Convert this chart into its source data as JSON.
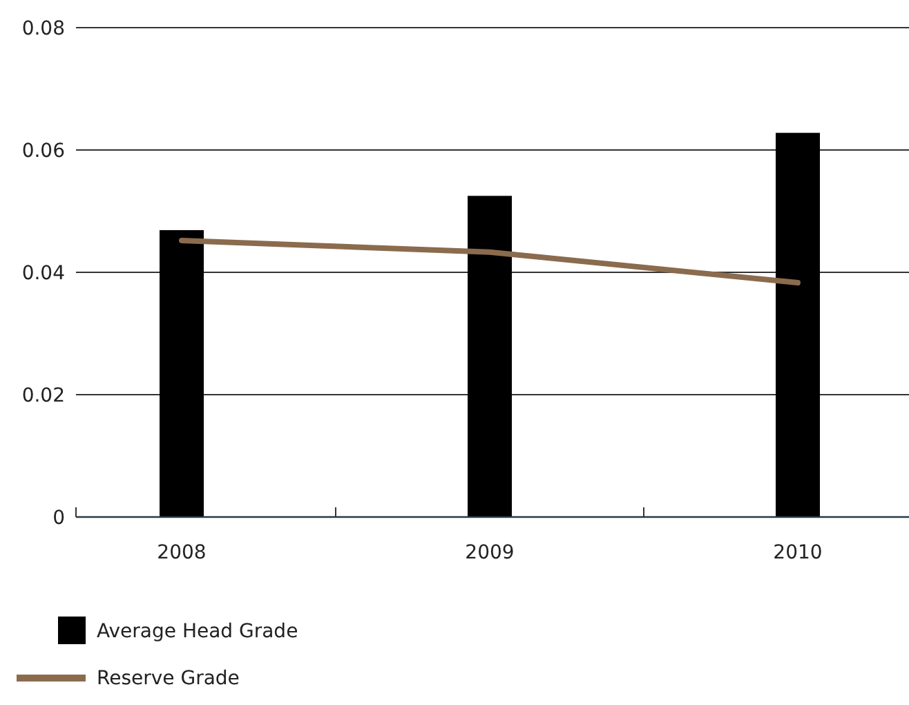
{
  "chart_data": {
    "type": "bar",
    "categories": [
      "2008",
      "2009",
      "2010"
    ],
    "series": [
      {
        "name": "Average Head Grade",
        "color": "#000000",
        "values": [
          0.0469,
          0.0525,
          0.0628
        ]
      },
      {
        "name": "Reserve Grade",
        "type": "line",
        "color": "#8b6b4e",
        "values": [
          0.0452,
          0.0433,
          0.0383
        ]
      }
    ],
    "ylim": [
      0,
      0.08
    ],
    "yticks": [
      0,
      0.02,
      0.04,
      0.06,
      0.08
    ],
    "grid": "y",
    "legend": "bottom left",
    "marker": "none",
    "line_style": "solid"
  }
}
